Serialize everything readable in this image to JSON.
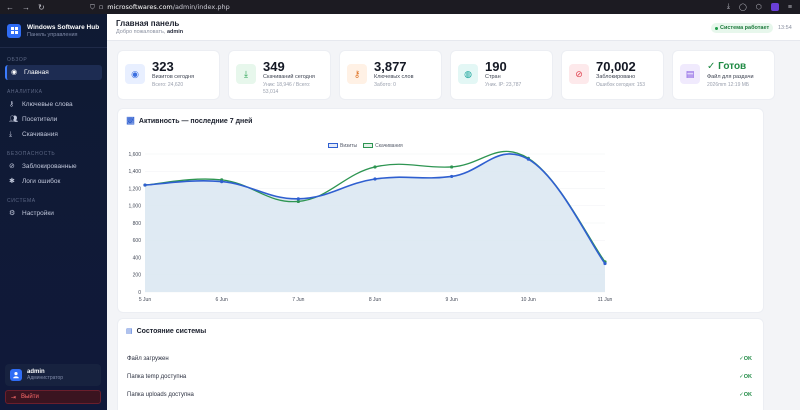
{
  "browser": {
    "url_host": "microsoftwares.com",
    "url_path": "/admin/index.php"
  },
  "sidebar": {
    "brand_title": "Windows Software Hub",
    "brand_subtitle": "Панель управления",
    "sections": [
      {
        "title": "Обзор",
        "items": [
          {
            "label": "Главная",
            "icon": "eye-icon",
            "active": true
          }
        ]
      },
      {
        "title": "Аналитика",
        "items": [
          {
            "label": "Ключевые слова",
            "icon": "key-icon"
          },
          {
            "label": "Посетители",
            "icon": "users-icon"
          },
          {
            "label": "Скачивания",
            "icon": "download-icon"
          }
        ]
      },
      {
        "title": "Безопасность",
        "items": [
          {
            "label": "Заблокированные",
            "icon": "ban-icon"
          },
          {
            "label": "Логи ошибок",
            "icon": "bug-icon"
          }
        ]
      },
      {
        "title": "Система",
        "items": [
          {
            "label": "Настройки",
            "icon": "gear-icon"
          }
        ]
      }
    ],
    "user": {
      "name": "admin",
      "role": "Администратор"
    },
    "logout_label": "Выйти"
  },
  "header": {
    "title": "Главная панель",
    "welcome_prefix": "Добро пожаловать,",
    "welcome_user": "admin",
    "status": "Система работает",
    "time": "13:54"
  },
  "stats": [
    {
      "value": "323",
      "label": "Визитов сегодня",
      "sub": "Всего: 24,620",
      "icon": "eye-icon",
      "color": "#3b6fe0",
      "bg": "#e8efff"
    },
    {
      "value": "349",
      "label": "Скачиваний сегодня",
      "sub": "Уник: 18,946 / Всего: 53,014",
      "icon": "download-icon",
      "color": "#1f9e4a",
      "bg": "#e7f7ec"
    },
    {
      "value": "3,877",
      "label": "Ключевых слов",
      "sub": "Забото: 0",
      "icon": "key-icon",
      "color": "#e0762a",
      "bg": "#fff1e5"
    },
    {
      "value": "190",
      "label": "Стран",
      "sub": "Уник. IP: 23,787",
      "icon": "globe-icon",
      "color": "#16a39a",
      "bg": "#e3f7f5"
    },
    {
      "value": "70,002",
      "label": "Заблокировано",
      "sub": "Ошибок сегодня: 153",
      "icon": "ban-icon",
      "color": "#e0424f",
      "bg": "#fde9eb"
    },
    {
      "value": "✓ Готов",
      "label": "Файл для раздачи",
      "sub": "2026mm 12:19 МБ",
      "icon": "file-icon",
      "color": "#7c4fe0",
      "bg": "#f0eafd",
      "green": true
    }
  ],
  "activity": {
    "title": "Активность — последние 7 дней",
    "chart_data": {
      "type": "area",
      "categories": [
        "5 Jun",
        "6 Jun",
        "7 Jun",
        "8 Jun",
        "9 Jun",
        "10 Jun",
        "11 Jun"
      ],
      "ylim": [
        0,
        1600
      ],
      "yticks": [
        "0",
        "200",
        "400",
        "600",
        "800",
        "1,000",
        "1,200",
        "1,400",
        "1,600"
      ],
      "series": [
        {
          "name": "Визиты",
          "values": [
            1240,
            1280,
            1080,
            1310,
            1340,
            1540,
            330
          ],
          "color": "#2f5fd0"
        },
        {
          "name": "Скачивания",
          "values": [
            1240,
            1300,
            1050,
            1450,
            1450,
            1550,
            350
          ],
          "color": "#2e9552"
        }
      ]
    }
  },
  "system": {
    "title": "Состояние системы",
    "rows": [
      {
        "label": "Файл загружен",
        "status": "✓OK"
      },
      {
        "label": "Папка temp доступна",
        "status": "✓OK"
      },
      {
        "label": "Папка uploads доступна",
        "status": "✓OK"
      }
    ]
  }
}
